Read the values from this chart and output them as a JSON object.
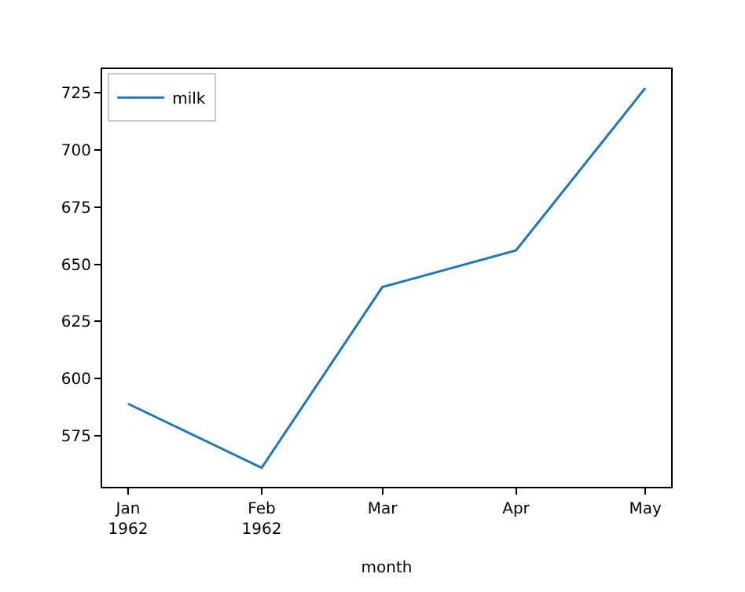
{
  "chart_data": {
    "type": "line",
    "xlabel": "month",
    "x": [
      "1962-01-01",
      "1962-02-01",
      "1962-03-01",
      "1962-04-01",
      "1962-05-01"
    ],
    "series": [
      {
        "name": "milk",
        "color": "#1f77b4",
        "values": [
          589,
          561,
          640,
          656,
          727
        ]
      }
    ],
    "xlim": [
      "1961-12-26",
      "1962-05-07"
    ],
    "xticks": [
      {
        "value": "1962-01-01",
        "label": "Jan\n1962"
      },
      {
        "value": "1962-02-01",
        "label": "Feb\n1962"
      },
      {
        "value": "1962-03-01",
        "label": "Mar"
      },
      {
        "value": "1962-04-01",
        "label": "Apr"
      },
      {
        "value": "1962-05-01",
        "label": "May"
      }
    ],
    "ylim": [
      552.7,
      735.3
    ],
    "yticks": [
      575,
      600,
      625,
      650,
      675,
      700,
      725
    ],
    "legend": "top left",
    "marker": "none",
    "line_style": "solid"
  }
}
